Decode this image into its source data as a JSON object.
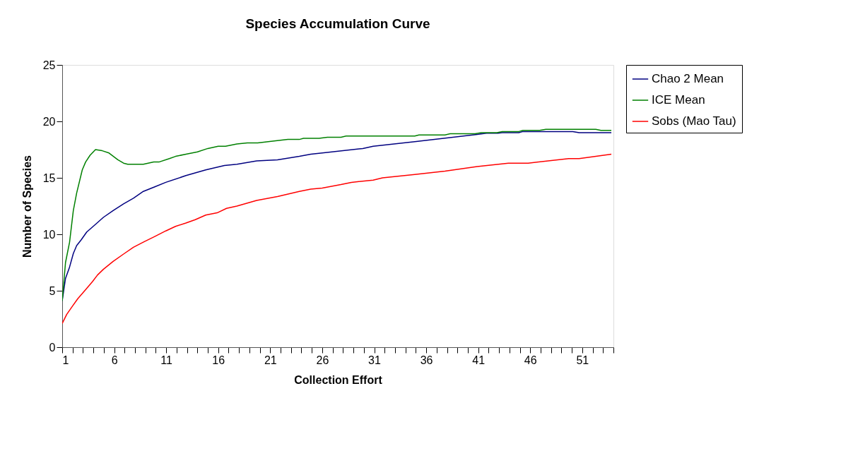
{
  "chart_data": {
    "type": "line",
    "title": "Species Accumulation Curve",
    "xlabel": "Collection Effort",
    "ylabel": "Number of Species",
    "xlim": [
      1,
      54
    ],
    "xticks": [
      1,
      {
        "value": 2,
        "label": null
      },
      {
        "value": 3,
        "label": null
      },
      {
        "value": 4,
        "label": null
      },
      {
        "value": 5,
        "label": null
      },
      6,
      {
        "value": 7,
        "label": null
      },
      {
        "value": 8,
        "label": null
      },
      {
        "value": 9,
        "label": null
      },
      {
        "value": 10,
        "label": null
      },
      11,
      {
        "value": 12,
        "label": null
      },
      {
        "value": 13,
        "label": null
      },
      {
        "value": 14,
        "label": null
      },
      {
        "value": 15,
        "label": null
      },
      16,
      {
        "value": 17,
        "label": null
      },
      {
        "value": 18,
        "label": null
      },
      {
        "value": 19,
        "label": null
      },
      {
        "value": 20,
        "label": null
      },
      21,
      {
        "value": 22,
        "label": null
      },
      {
        "value": 23,
        "label": null
      },
      {
        "value": 24,
        "label": null
      },
      {
        "value": 25,
        "label": null
      },
      26,
      {
        "value": 27,
        "label": null
      },
      {
        "value": 28,
        "label": null
      },
      {
        "value": 29,
        "label": null
      },
      {
        "value": 30,
        "label": null
      },
      31,
      {
        "value": 32,
        "label": null
      },
      {
        "value": 33,
        "label": null
      },
      {
        "value": 34,
        "label": null
      },
      {
        "value": 35,
        "label": null
      },
      36,
      {
        "value": 37,
        "label": null
      },
      {
        "value": 38,
        "label": null
      },
      {
        "value": 39,
        "label": null
      },
      {
        "value": 40,
        "label": null
      },
      41,
      {
        "value": 42,
        "label": null
      },
      {
        "value": 43,
        "label": null
      },
      {
        "value": 44,
        "label": null
      },
      {
        "value": 45,
        "label": null
      },
      46,
      {
        "value": 47,
        "label": null
      },
      {
        "value": 48,
        "label": null
      },
      {
        "value": 49,
        "label": null
      },
      {
        "value": 50,
        "label": null
      },
      51,
      {
        "value": 52,
        "label": null
      },
      {
        "value": 53,
        "label": null
      },
      {
        "value": 54,
        "label": null
      }
    ],
    "ylim": [
      0,
      25
    ],
    "yticks": [
      0,
      5,
      10,
      15,
      20,
      25
    ],
    "grid": false,
    "legend": "right",
    "marker": "none",
    "line_style": "solid",
    "series": [
      {
        "name": "Chao 2 Mean",
        "color": "#000080",
        "x": [
          1,
          1.32,
          1.71,
          2.07,
          2.39,
          2.82,
          3.36,
          4.1,
          4.96,
          5.9,
          6.9,
          7.85,
          8.8,
          9.9,
          10.96,
          12.9,
          14.8,
          16.6,
          17.8,
          19.7,
          21.7,
          23.8,
          24.9,
          26,
          29.9,
          30.9,
          34.9,
          40.9,
          41.8,
          42.9,
          43.3,
          44.9,
          45.3,
          50.1,
          50.7,
          53.8
        ],
        "values": [
          4.1,
          6.1,
          7.1,
          8.3,
          9.0,
          9.5,
          10.2,
          10.8,
          11.5,
          12.1,
          12.7,
          13.2,
          13.8,
          14.2,
          14.6,
          15.2,
          15.7,
          16.1,
          16.2,
          16.5,
          16.6,
          16.9,
          17.1,
          17.2,
          17.6,
          17.8,
          18.2,
          18.85,
          18.95,
          18.95,
          19.0,
          19.0,
          19.1,
          19.1,
          19.0,
          19.0
        ]
      },
      {
        "name": "ICE Mean",
        "color": "#008000",
        "x": [
          1,
          1.32,
          1.71,
          2.07,
          2.39,
          2.93,
          3.25,
          3.68,
          4.2,
          4.85,
          5.5,
          6.35,
          6.9,
          7.3,
          8.8,
          9.8,
          10.3,
          11.3,
          11.9,
          12.9,
          14,
          15,
          16,
          16.7,
          17.8,
          18.8,
          19.8,
          20.8,
          22.7,
          23.8,
          24.2,
          25.7,
          26.5,
          27.8,
          28.3,
          34.9,
          35.3,
          37.8,
          38.3,
          40.7,
          41.3,
          42.8,
          43.3,
          44.9,
          45.3,
          46.9,
          47.5,
          52.3,
          52.8,
          53.8
        ],
        "values": [
          4.1,
          7.5,
          9.3,
          12.1,
          13.65,
          15.7,
          16.4,
          17.0,
          17.5,
          17.4,
          17.2,
          16.6,
          16.3,
          16.2,
          16.2,
          16.4,
          16.4,
          16.7,
          16.9,
          17.1,
          17.3,
          17.6,
          17.8,
          17.8,
          18.0,
          18.1,
          18.1,
          18.2,
          18.4,
          18.4,
          18.5,
          18.5,
          18.6,
          18.6,
          18.7,
          18.7,
          18.8,
          18.8,
          18.9,
          18.9,
          19.0,
          19.0,
          19.1,
          19.1,
          19.2,
          19.2,
          19.3,
          19.3,
          19.2,
          19.2
        ]
      },
      {
        "name": "Sobs (Mao Tau)",
        "color": "#ff0000",
        "x": [
          1,
          1.43,
          1.96,
          2.5,
          3.25,
          3.9,
          4.4,
          4.96,
          5.9,
          6.9,
          7.85,
          8.8,
          9.9,
          10.96,
          11.9,
          12.9,
          13.8,
          14.8,
          15.9,
          16.8,
          17.8,
          19.7,
          21.7,
          23.8,
          24.9,
          26,
          27.8,
          28.8,
          30.9,
          31.8,
          34.9,
          37.8,
          40.9,
          43.9,
          44.7,
          45.8,
          49.7,
          50.7,
          53.8
        ],
        "values": [
          2.1,
          2.9,
          3.6,
          4.3,
          5.1,
          5.8,
          6.4,
          6.9,
          7.6,
          8.25,
          8.85,
          9.3,
          9.8,
          10.3,
          10.7,
          11.0,
          11.3,
          11.7,
          11.9,
          12.3,
          12.5,
          13.0,
          13.35,
          13.8,
          14.0,
          14.1,
          14.4,
          14.6,
          14.8,
          15.0,
          15.3,
          15.6,
          16.0,
          16.3,
          16.3,
          16.3,
          16.7,
          16.7,
          17.1
        ]
      }
    ]
  }
}
